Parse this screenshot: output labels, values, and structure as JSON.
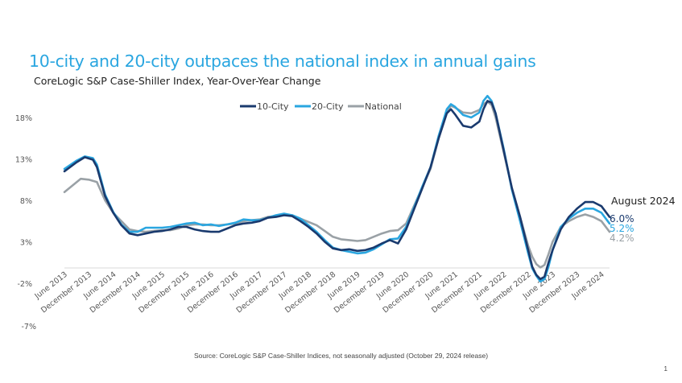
{
  "title": "10-city and 20-city outpaces the national index in annual gains",
  "subtitle": "CoreLogic S&P Case-Shiller Index, Year-Over-Year Change",
  "source": "Source: CoreLogic S&P Case-Shiller Indices, not seasonally adjusted (October 29, 2024 release)",
  "page_number": "1",
  "end_annotations": {
    "date": "August 2024",
    "ten_city": "6.0%",
    "twenty_city": "5.2%",
    "national": "4.2%"
  },
  "colors": {
    "ten_city": "#1a3a6e",
    "twenty_city": "#2aa6e0",
    "national": "#9aa1a6",
    "title": "#2aa6e0"
  },
  "chart_data": {
    "type": "line",
    "title": "10-city and 20-city outpaces the national index in annual gains",
    "subtitle": "CoreLogic S&P Case-Shiller Index, Year-Over-Year Change",
    "xlabel": "",
    "ylabel": "",
    "y_tick_labels": [
      "-2%",
      "3%",
      "8%",
      "13%",
      "18%"
    ],
    "y_tick_values": [
      -2,
      3,
      8,
      13,
      18
    ],
    "extra_tick_label": "-7%",
    "ylim": [
      -2,
      20
    ],
    "x_tick_labels": [
      "June 2013",
      "December 2013",
      "June 2014",
      "December 2014",
      "June 2015",
      "December 2015",
      "June 2016",
      "December 2016",
      "June 2017",
      "December 2017",
      "June 2018",
      "December 2018",
      "June 2019",
      "December 2019",
      "June 2020",
      "December 2020",
      "June 2021",
      "December 2021",
      "June 2022",
      "December 2022",
      "June 2023",
      "December 2023",
      "June 2024"
    ],
    "x_tick_index": [
      0,
      6,
      12,
      18,
      24,
      30,
      36,
      42,
      48,
      54,
      60,
      66,
      72,
      78,
      84,
      90,
      96,
      102,
      108,
      114,
      120,
      126,
      132
    ],
    "x_months": "June 2013 through August 2024 (monthly, index 0-134)",
    "legend": {
      "position": "top-center",
      "entries": [
        "10-City",
        "20-City",
        "National"
      ]
    },
    "series": [
      {
        "name": "10-City",
        "points": [
          [
            0,
            11.5
          ],
          [
            3,
            12.6
          ],
          [
            5,
            13.2
          ],
          [
            7,
            12.9
          ],
          [
            8,
            12.0
          ],
          [
            10,
            8.5
          ],
          [
            12,
            6.5
          ],
          [
            14,
            5.0
          ],
          [
            16,
            4.0
          ],
          [
            18,
            3.8
          ],
          [
            20,
            4.0
          ],
          [
            22,
            4.2
          ],
          [
            24,
            4.3
          ],
          [
            26,
            4.5
          ],
          [
            28,
            4.8
          ],
          [
            30,
            4.8
          ],
          [
            32,
            4.5
          ],
          [
            34,
            4.3
          ],
          [
            36,
            4.2
          ],
          [
            38,
            4.2
          ],
          [
            40,
            4.6
          ],
          [
            42,
            5.0
          ],
          [
            44,
            5.2
          ],
          [
            46,
            5.3
          ],
          [
            48,
            5.5
          ],
          [
            50,
            5.9
          ],
          [
            52,
            6.0
          ],
          [
            54,
            6.2
          ],
          [
            56,
            6.1
          ],
          [
            58,
            5.5
          ],
          [
            60,
            4.8
          ],
          [
            62,
            4.0
          ],
          [
            64,
            3.0
          ],
          [
            66,
            2.2
          ],
          [
            68,
            2.0
          ],
          [
            70,
            2.1
          ],
          [
            72,
            1.9
          ],
          [
            74,
            2.0
          ],
          [
            76,
            2.3
          ],
          [
            78,
            2.8
          ],
          [
            80,
            3.2
          ],
          [
            82,
            2.8
          ],
          [
            84,
            4.5
          ],
          [
            86,
            7.0
          ],
          [
            88,
            9.5
          ],
          [
            90,
            12.0
          ],
          [
            92,
            15.5
          ],
          [
            94,
            18.5
          ],
          [
            95,
            19.0
          ],
          [
            96,
            18.4
          ],
          [
            98,
            17.0
          ],
          [
            100,
            16.8
          ],
          [
            102,
            17.5
          ],
          [
            103,
            19.0
          ],
          [
            104,
            20.0
          ],
          [
            105,
            19.8
          ],
          [
            106,
            18.5
          ],
          [
            108,
            14.0
          ],
          [
            110,
            9.5
          ],
          [
            112,
            6.0
          ],
          [
            114,
            2.0
          ],
          [
            115,
            0.0
          ],
          [
            116,
            -1.0
          ],
          [
            117,
            -1.5
          ],
          [
            118,
            -1.2
          ],
          [
            119,
            0.5
          ],
          [
            120,
            2.0
          ],
          [
            122,
            4.5
          ],
          [
            124,
            6.0
          ],
          [
            126,
            7.0
          ],
          [
            128,
            7.8
          ],
          [
            130,
            7.8
          ],
          [
            132,
            7.3
          ],
          [
            134,
            6.0
          ]
        ]
      },
      {
        "name": "20-City",
        "points": [
          [
            0,
            11.8
          ],
          [
            3,
            12.8
          ],
          [
            5,
            13.3
          ],
          [
            7,
            13.1
          ],
          [
            8,
            12.3
          ],
          [
            10,
            8.7
          ],
          [
            12,
            6.6
          ],
          [
            14,
            5.1
          ],
          [
            16,
            4.2
          ],
          [
            18,
            4.2
          ],
          [
            20,
            4.7
          ],
          [
            22,
            4.7
          ],
          [
            24,
            4.7
          ],
          [
            26,
            4.8
          ],
          [
            28,
            5.0
          ],
          [
            30,
            5.2
          ],
          [
            32,
            5.3
          ],
          [
            34,
            5.0
          ],
          [
            36,
            5.1
          ],
          [
            38,
            4.9
          ],
          [
            40,
            5.1
          ],
          [
            42,
            5.3
          ],
          [
            44,
            5.7
          ],
          [
            46,
            5.6
          ],
          [
            48,
            5.6
          ],
          [
            50,
            5.9
          ],
          [
            52,
            6.2
          ],
          [
            54,
            6.4
          ],
          [
            56,
            6.2
          ],
          [
            58,
            5.8
          ],
          [
            60,
            5.0
          ],
          [
            62,
            4.2
          ],
          [
            64,
            3.2
          ],
          [
            66,
            2.3
          ],
          [
            68,
            2.0
          ],
          [
            70,
            1.8
          ],
          [
            72,
            1.6
          ],
          [
            74,
            1.7
          ],
          [
            76,
            2.1
          ],
          [
            78,
            2.7
          ],
          [
            80,
            3.3
          ],
          [
            82,
            3.4
          ],
          [
            84,
            4.8
          ],
          [
            86,
            7.2
          ],
          [
            88,
            9.7
          ],
          [
            90,
            12.0
          ],
          [
            92,
            15.8
          ],
          [
            94,
            19.0
          ],
          [
            95,
            19.6
          ],
          [
            96,
            19.3
          ],
          [
            98,
            18.3
          ],
          [
            100,
            18.0
          ],
          [
            102,
            18.6
          ],
          [
            103,
            20.0
          ],
          [
            104,
            20.6
          ],
          [
            105,
            20.0
          ],
          [
            106,
            18.5
          ],
          [
            108,
            14.2
          ],
          [
            110,
            9.3
          ],
          [
            112,
            5.5
          ],
          [
            114,
            1.6
          ],
          [
            115,
            -0.2
          ],
          [
            116,
            -1.1
          ],
          [
            117,
            -1.8
          ],
          [
            118,
            -1.5
          ],
          [
            119,
            0.0
          ],
          [
            120,
            2.0
          ],
          [
            122,
            4.8
          ],
          [
            124,
            5.8
          ],
          [
            126,
            6.5
          ],
          [
            128,
            7.0
          ],
          [
            130,
            7.0
          ],
          [
            132,
            6.5
          ],
          [
            134,
            5.2
          ]
        ]
      },
      {
        "name": "National",
        "points": [
          [
            0,
            9.0
          ],
          [
            2,
            9.8
          ],
          [
            4,
            10.6
          ],
          [
            6,
            10.5
          ],
          [
            8,
            10.2
          ],
          [
            10,
            8.0
          ],
          [
            12,
            6.5
          ],
          [
            14,
            5.5
          ],
          [
            16,
            4.5
          ],
          [
            18,
            4.3
          ],
          [
            20,
            4.2
          ],
          [
            22,
            4.3
          ],
          [
            24,
            4.4
          ],
          [
            26,
            4.4
          ],
          [
            28,
            4.6
          ],
          [
            30,
            5.0
          ],
          [
            32,
            5.1
          ],
          [
            34,
            5.1
          ],
          [
            36,
            5.0
          ],
          [
            38,
            5.0
          ],
          [
            40,
            5.1
          ],
          [
            42,
            5.2
          ],
          [
            44,
            5.5
          ],
          [
            46,
            5.6
          ],
          [
            48,
            5.7
          ],
          [
            50,
            6.0
          ],
          [
            52,
            6.1
          ],
          [
            54,
            6.2
          ],
          [
            56,
            6.2
          ],
          [
            58,
            5.8
          ],
          [
            60,
            5.4
          ],
          [
            62,
            5.0
          ],
          [
            64,
            4.3
          ],
          [
            66,
            3.6
          ],
          [
            68,
            3.3
          ],
          [
            70,
            3.2
          ],
          [
            72,
            3.1
          ],
          [
            74,
            3.2
          ],
          [
            76,
            3.6
          ],
          [
            78,
            4.0
          ],
          [
            80,
            4.3
          ],
          [
            82,
            4.4
          ],
          [
            84,
            5.2
          ],
          [
            86,
            7.4
          ],
          [
            88,
            9.6
          ],
          [
            90,
            11.8
          ],
          [
            92,
            15.5
          ],
          [
            94,
            18.8
          ],
          [
            95,
            19.4
          ],
          [
            96,
            19.2
          ],
          [
            98,
            18.6
          ],
          [
            100,
            18.5
          ],
          [
            102,
            18.9
          ],
          [
            103,
            19.6
          ],
          [
            104,
            19.9
          ],
          [
            105,
            19.5
          ],
          [
            106,
            18.0
          ],
          [
            108,
            13.8
          ],
          [
            110,
            9.5
          ],
          [
            112,
            6.0
          ],
          [
            114,
            2.5
          ],
          [
            115,
            1.2
          ],
          [
            116,
            0.3
          ],
          [
            117,
            -0.1
          ],
          [
            118,
            0.2
          ],
          [
            119,
            1.5
          ],
          [
            120,
            3.0
          ],
          [
            122,
            4.8
          ],
          [
            124,
            5.5
          ],
          [
            126,
            6.0
          ],
          [
            128,
            6.3
          ],
          [
            130,
            6.0
          ],
          [
            132,
            5.5
          ],
          [
            134,
            4.2
          ]
        ]
      }
    ]
  }
}
